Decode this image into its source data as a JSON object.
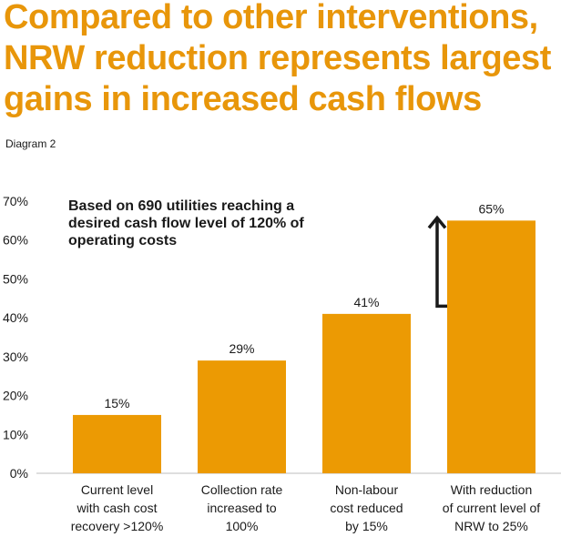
{
  "colors": {
    "accent": "#e8960a",
    "bar": "#ec9a03",
    "text": "#1a1a1a",
    "axis": "#bdbdbd"
  },
  "headline": {
    "lines": [
      "Compared to other interventions,",
      "NRW reduction represents largest",
      "gains in increased cash flows"
    ]
  },
  "diagram_label": "Diagram 2",
  "chart_data": {
    "type": "bar",
    "title": "",
    "xlabel": "",
    "ylabel": "",
    "ylim": [
      0,
      70
    ],
    "yticks": [
      0,
      10,
      20,
      30,
      40,
      50,
      60,
      70
    ],
    "ytick_labels": [
      "0%",
      "10%",
      "20%",
      "30%",
      "40%",
      "50%",
      "60%",
      "70%"
    ],
    "categories": [
      [
        "Current level",
        "with cash cost",
        "recovery >120%"
      ],
      [
        "Collection rate",
        "increased to",
        "100%"
      ],
      [
        "Non-labour",
        "cost reduced",
        "by 15%"
      ],
      [
        "With reduction",
        "of current level of",
        "NRW to 25%"
      ]
    ],
    "values": [
      15,
      29,
      41,
      65
    ],
    "data_labels": [
      "15%",
      "29%",
      "41%",
      "65%"
    ],
    "annotation": [
      "Based on 690 utilities reaching a",
      "desired cash flow level of 120% of",
      "operating costs"
    ],
    "arrow": {
      "from_value": 43,
      "to_value": 65,
      "bar_index": 3
    },
    "legend": "none",
    "grid": false
  }
}
